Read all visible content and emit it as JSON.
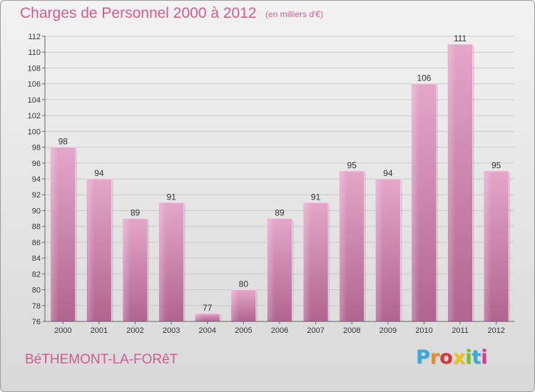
{
  "header": {
    "title": "Charges de Personnel 2000 à 2012",
    "subtitle": "(en milliers d'€)"
  },
  "footer": {
    "town": "BéTHEMONT-LA-FORêT",
    "logo_letters": [
      "P",
      "r",
      "o",
      "x",
      "i",
      "t",
      "i"
    ],
    "logo_colors": [
      "#3aa8d8",
      "#f08a1c",
      "#d23a3a",
      "#f2c21a",
      "#7cbf2a",
      "#3aa8d8",
      "#d23a8c"
    ]
  },
  "chart_data": {
    "type": "bar",
    "categories": [
      "2000",
      "2001",
      "2002",
      "2003",
      "2004",
      "2005",
      "2006",
      "2007",
      "2008",
      "2009",
      "2010",
      "2011",
      "2012"
    ],
    "values": [
      98,
      94,
      89,
      91,
      77,
      80,
      89,
      91,
      95,
      94,
      106,
      111,
      95
    ],
    "ylim": [
      76,
      112
    ],
    "yticks": [
      76,
      78,
      80,
      82,
      84,
      86,
      88,
      90,
      92,
      94,
      96,
      98,
      100,
      102,
      104,
      106,
      108,
      110,
      112
    ],
    "grid": true,
    "bar_color": "#d68ab3",
    "axis_text_color": "#333333"
  }
}
